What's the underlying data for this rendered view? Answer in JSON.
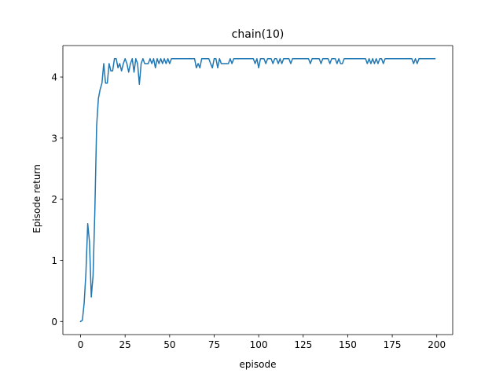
{
  "chart_data": {
    "type": "line",
    "title": "chain(10)",
    "xlabel": "episode",
    "ylabel": "Episode return",
    "xlim": [
      -9.95,
      208.95
    ],
    "ylim": [
      -0.215,
      4.515
    ],
    "xticks": [
      0,
      25,
      50,
      75,
      100,
      125,
      150,
      175,
      200
    ],
    "yticks": [
      0,
      1,
      2,
      3,
      4
    ],
    "grid": false,
    "colors": {
      "line": "#1f77b4",
      "axes": "#000000",
      "background": "#ffffff"
    },
    "series": [
      {
        "values": [
          0.0,
          0.02,
          0.3,
          0.8,
          1.6,
          1.3,
          0.4,
          0.75,
          1.8,
          3.2,
          3.65,
          3.8,
          3.9,
          4.22,
          3.9,
          3.9,
          4.22,
          4.1,
          4.1,
          4.3,
          4.3,
          4.15,
          4.22,
          4.1,
          4.22,
          4.3,
          4.22,
          4.08,
          4.22,
          4.3,
          4.08,
          4.3,
          4.22,
          3.88,
          4.22,
          4.3,
          4.22,
          4.22,
          4.22,
          4.3,
          4.22,
          4.3,
          4.15,
          4.3,
          4.22,
          4.3,
          4.22,
          4.3,
          4.22,
          4.3,
          4.22,
          4.3,
          4.3,
          4.3,
          4.3,
          4.3,
          4.3,
          4.3,
          4.3,
          4.3,
          4.3,
          4.3,
          4.3,
          4.3,
          4.3,
          4.15,
          4.22,
          4.15,
          4.3,
          4.3,
          4.3,
          4.3,
          4.3,
          4.22,
          4.15,
          4.3,
          4.3,
          4.15,
          4.3,
          4.22,
          4.22,
          4.22,
          4.22,
          4.22,
          4.3,
          4.22,
          4.3,
          4.3,
          4.3,
          4.3,
          4.3,
          4.3,
          4.3,
          4.3,
          4.3,
          4.3,
          4.3,
          4.3,
          4.22,
          4.3,
          4.15,
          4.3,
          4.3,
          4.3,
          4.22,
          4.3,
          4.3,
          4.3,
          4.22,
          4.3,
          4.3,
          4.22,
          4.3,
          4.22,
          4.3,
          4.3,
          4.3,
          4.3,
          4.22,
          4.3,
          4.3,
          4.3,
          4.3,
          4.3,
          4.3,
          4.3,
          4.3,
          4.3,
          4.3,
          4.22,
          4.3,
          4.3,
          4.3,
          4.3,
          4.3,
          4.22,
          4.3,
          4.3,
          4.3,
          4.3,
          4.22,
          4.3,
          4.3,
          4.3,
          4.22,
          4.3,
          4.22,
          4.22,
          4.3,
          4.3,
          4.3,
          4.3,
          4.3,
          4.3,
          4.3,
          4.3,
          4.3,
          4.3,
          4.3,
          4.3,
          4.3,
          4.22,
          4.3,
          4.22,
          4.3,
          4.22,
          4.3,
          4.22,
          4.3,
          4.3,
          4.22,
          4.3,
          4.3,
          4.3,
          4.3,
          4.3,
          4.3,
          4.3,
          4.3,
          4.3,
          4.3,
          4.3,
          4.3,
          4.3,
          4.3,
          4.3,
          4.3,
          4.22,
          4.3,
          4.22,
          4.3,
          4.3,
          4.3,
          4.3,
          4.3,
          4.3,
          4.3,
          4.3,
          4.3,
          4.3
        ]
      }
    ]
  }
}
